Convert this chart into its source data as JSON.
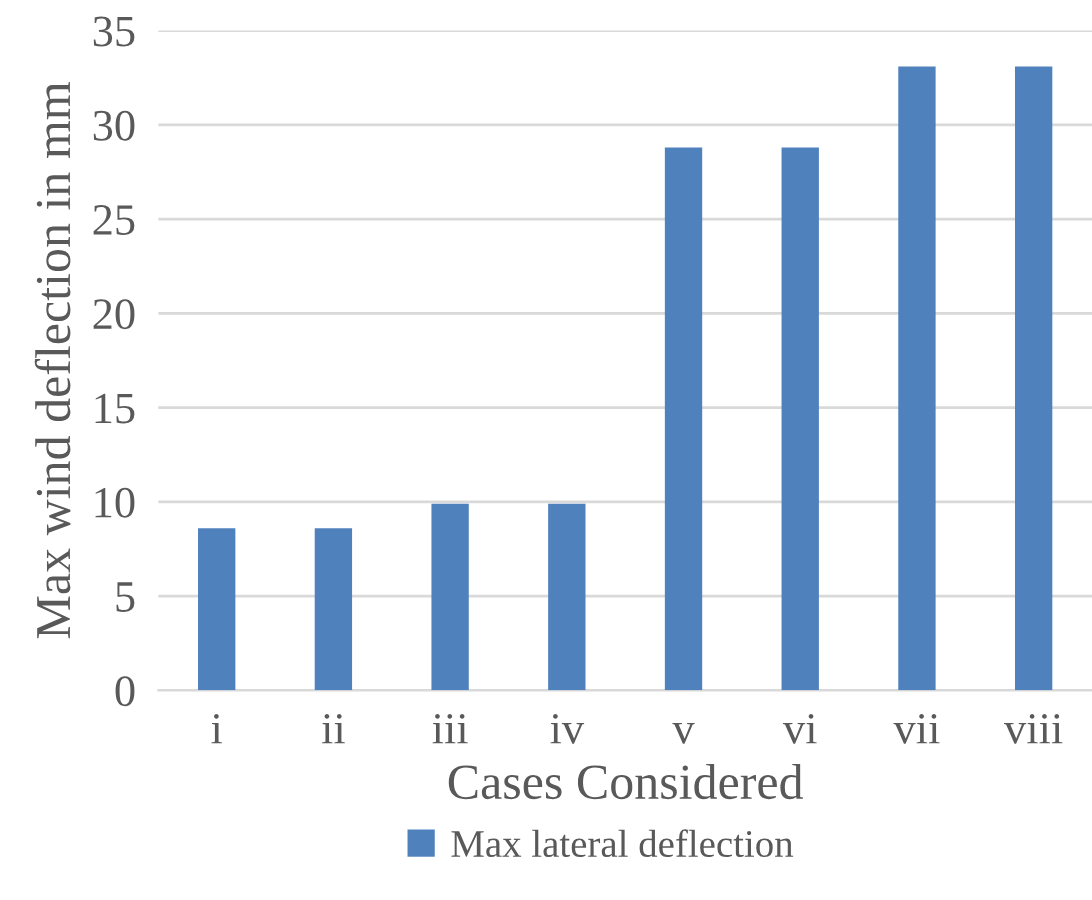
{
  "chart_data": {
    "type": "bar",
    "xlabel": "Cases Considered",
    "ylabel": "Max wind deflection in mm",
    "categories": [
      "i",
      "ii",
      "iii",
      "iv",
      "v",
      "vi",
      "vii",
      "viii"
    ],
    "series": [
      {
        "name": "Max lateral deflection",
        "color": "#4f81bd",
        "values": [
          8.6,
          8.6,
          9.9,
          9.9,
          28.8,
          28.8,
          33.1,
          33.1
        ]
      }
    ],
    "ylim": [
      0,
      35
    ],
    "yticks": [
      0,
      5,
      10,
      15,
      20,
      25,
      30,
      35
    ],
    "grid": "y",
    "legend": "bottom"
  }
}
